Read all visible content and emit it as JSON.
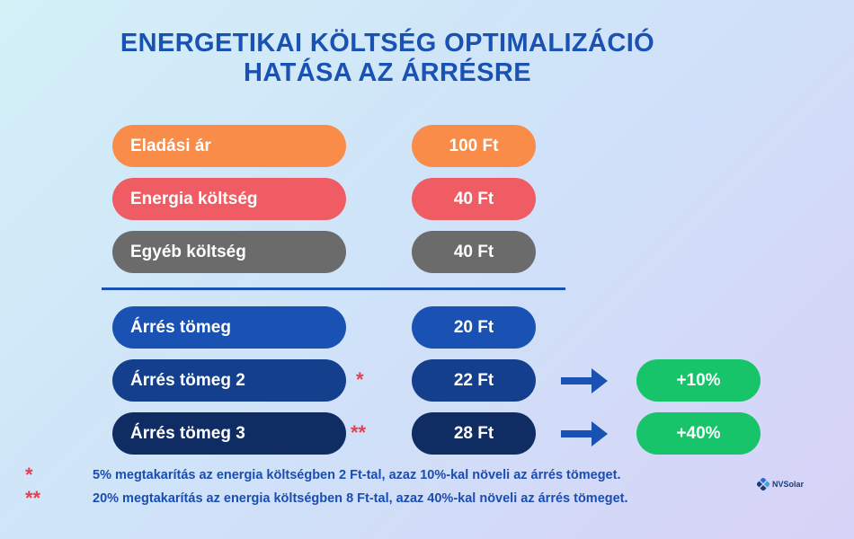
{
  "title_line1": "ENERGETIKAI KÖLTSÉG OPTIMALIZÁCIÓ",
  "title_line2": "HATÁSA AZ ÁRRÉSRE",
  "colors": {
    "orange": "#f88c48",
    "red": "#f05c63",
    "gray": "#6b6b6b",
    "blue1": "#1a52b3",
    "blue2": "#143f8c",
    "blue3": "#102d63",
    "green": "#18c46a",
    "star_red": "#e8404f"
  },
  "rows": [
    {
      "label": "Eladási ár",
      "value": "100 Ft"
    },
    {
      "label": "Energia költség",
      "value": "40 Ft"
    },
    {
      "label": "Egyéb költség",
      "value": "40 Ft"
    },
    {
      "label": "Árrés tömeg",
      "value": "20 Ft"
    },
    {
      "label": "Árrés tömeg 2",
      "value": "22 Ft",
      "mark": "*",
      "change": "+10%"
    },
    {
      "label": "Árrés tömeg 3",
      "value": "28 Ft",
      "mark": "**",
      "change": "+40%"
    }
  ],
  "footnotes": [
    {
      "mark": "*",
      "text": "5% megtakarítás az energia költségben 2 Ft-tal, azaz 10%-kal növeli az árrés tömeget."
    },
    {
      "mark": "**",
      "text": "20% megtakarítás az energia költségben 8 Ft-tal, azaz 40%-kal növeli az árrés tömeget."
    }
  ],
  "logo": {
    "text": "NVSolar",
    "icon": "nvsolar-logo-icon"
  }
}
